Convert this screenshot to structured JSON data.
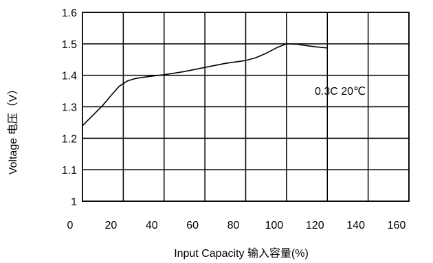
{
  "chart_data": {
    "type": "line",
    "xlabel": "Input Capacity  输入容量(%)",
    "ylabel": "Voltage 电压（V）",
    "xlim": [
      0,
      160
    ],
    "ylim": [
      1.0,
      1.6
    ],
    "x_ticks": [
      0,
      20,
      40,
      60,
      80,
      100,
      120,
      140,
      160
    ],
    "y_ticks": [
      1,
      1.1,
      1.2,
      1.3,
      1.4,
      1.5,
      1.6
    ],
    "y_tick_labels": [
      "1",
      "1.1",
      "1.2",
      "1.3",
      "1.4",
      "1.5",
      "1.6"
    ],
    "grid": true,
    "annotation": "0.3C 20℃",
    "series": [
      {
        "x": [
          0,
          5,
          10,
          14,
          18,
          22,
          26,
          30,
          35,
          40,
          50,
          60,
          70,
          80,
          85,
          90,
          95,
          100,
          105,
          110,
          115,
          120
        ],
        "y": [
          1.24,
          1.272,
          1.305,
          1.336,
          1.365,
          1.382,
          1.39,
          1.394,
          1.398,
          1.402,
          1.412,
          1.425,
          1.438,
          1.447,
          1.456,
          1.47,
          1.487,
          1.5,
          1.499,
          1.494,
          1.49,
          1.487
        ]
      }
    ],
    "color": "#000000"
  }
}
